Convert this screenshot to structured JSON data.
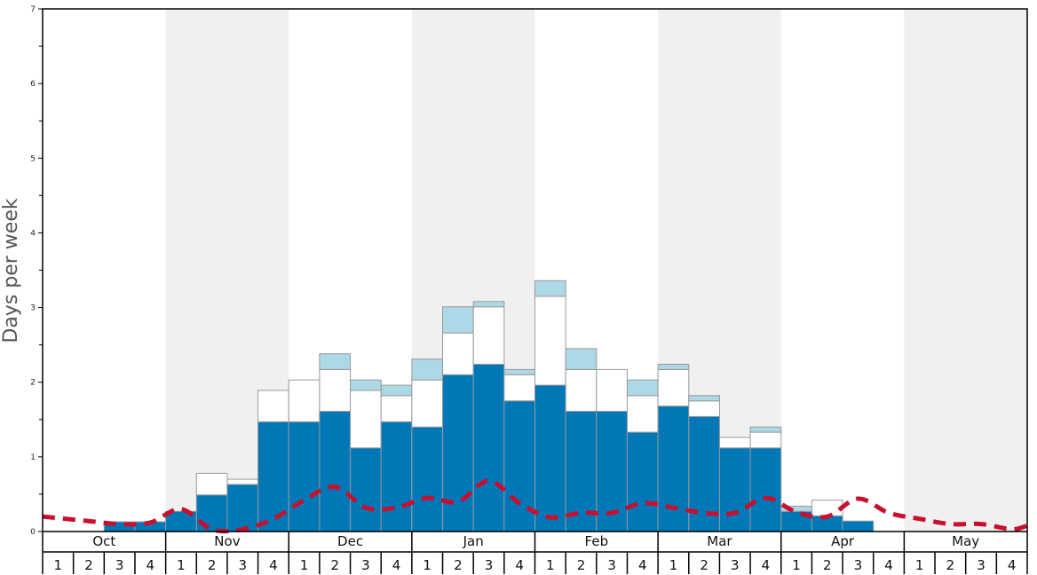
{
  "chart_data": {
    "type": "bar",
    "title": "",
    "xlabel": "",
    "ylabel": "Days per week",
    "ylim": [
      0,
      7
    ],
    "y_ticks": [
      "0",
      "1",
      "2",
      "3",
      "4",
      "5",
      "6",
      "7"
    ],
    "months": [
      "Oct",
      "Nov",
      "Dec",
      "Jan",
      "Feb",
      "Mar",
      "Apr",
      "May"
    ],
    "weeks": [
      "1",
      "2",
      "3",
      "4"
    ],
    "categories": [
      "Oct 1",
      "Oct 2",
      "Oct 3",
      "Oct 4",
      "Nov 1",
      "Nov 2",
      "Nov 3",
      "Nov 4",
      "Dec 1",
      "Dec 2",
      "Dec 3",
      "Dec 4",
      "Jan 1",
      "Jan 2",
      "Jan 3",
      "Jan 4",
      "Feb 1",
      "Feb 2",
      "Feb 3",
      "Feb 4",
      "Mar 1",
      "Mar 2",
      "Mar 3",
      "Mar 4",
      "Apr 1",
      "Apr 2",
      "Apr 3",
      "Apr 4",
      "May 1",
      "May 2",
      "May 3",
      "May 4"
    ],
    "stacked": true,
    "series": [
      {
        "color": "#0077b6",
        "values": [
          0,
          0,
          0.13,
          0.13,
          0.27,
          0.49,
          0.63,
          1.47,
          1.47,
          1.61,
          1.12,
          1.47,
          1.4,
          2.1,
          2.24,
          1.75,
          1.96,
          1.61,
          1.61,
          1.33,
          1.68,
          1.54,
          1.12,
          1.12,
          0.27,
          0.21,
          0.14,
          0,
          0,
          0,
          0,
          0
        ]
      },
      {
        "color": "#ffffff",
        "values": [
          0,
          0,
          0,
          0,
          0,
          0.29,
          0.07,
          0.42,
          0.56,
          0.56,
          0.77,
          0.35,
          0.63,
          0.56,
          0.77,
          0.35,
          1.19,
          0.56,
          0.56,
          0.49,
          0.49,
          0.21,
          0.14,
          0.21,
          0,
          0.21,
          0,
          0,
          0,
          0,
          0,
          0
        ]
      },
      {
        "color": "#add8e6",
        "values": [
          0,
          0,
          0,
          0,
          0,
          0,
          0,
          0,
          0,
          0.21,
          0.14,
          0.14,
          0.28,
          0.35,
          0.07,
          0.07,
          0.21,
          0.28,
          0,
          0.21,
          0.07,
          0.07,
          0,
          0.07,
          0.07,
          0,
          0,
          0,
          0,
          0,
          0,
          0
        ]
      }
    ],
    "line": {
      "color": "#c8102e",
      "style": "dashed",
      "values": [
        0.18,
        0.14,
        0.1,
        0.12,
        0.3,
        0.03,
        0.03,
        0.17,
        0.42,
        0.6,
        0.32,
        0.32,
        0.45,
        0.4,
        0.68,
        0.38,
        0.19,
        0.25,
        0.25,
        0.38,
        0.32,
        0.25,
        0.25,
        0.45,
        0.26,
        0.2,
        0.44,
        0.25,
        0.17,
        0.1,
        0.1,
        0.03
      ]
    },
    "shaded_months": [
      "Nov",
      "Jan",
      "Mar",
      "May"
    ],
    "shade_color": "#f0f0f0",
    "grid": false,
    "legend": "none"
  }
}
